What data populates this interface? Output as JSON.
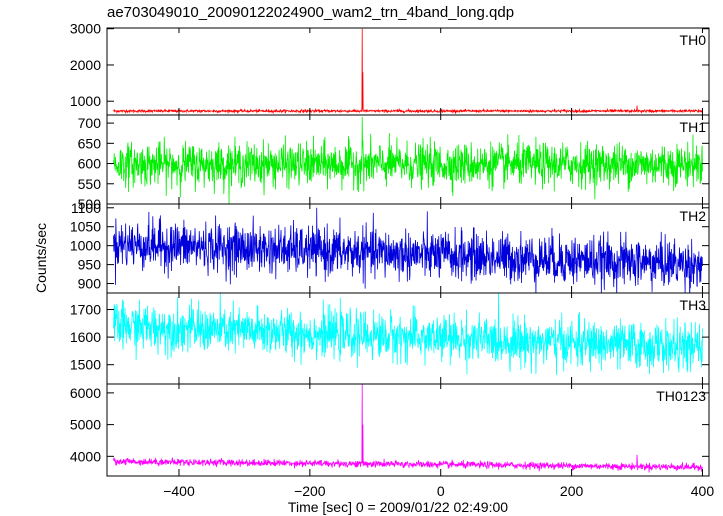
{
  "chart_data": {
    "type": "line",
    "title": "ae703049010_20090122024900_wam2_trn_4band_long.qdp",
    "xlabel": "Time [sec] 0 = 2009/01/22 02:49:00",
    "ylabel": "Counts/sec",
    "xlim": [
      -510,
      410
    ],
    "xticks": [
      -400,
      -200,
      0,
      200,
      400
    ],
    "xtick_labels": [
      "−400",
      "−200",
      "0",
      "200",
      "400"
    ],
    "panels": [
      {
        "name": "TH0",
        "color": "#ff0000",
        "ylim": [
          620,
          3020
        ],
        "yticks": [
          1000,
          2000,
          3000
        ],
        "ytick_labels": [
          "1000",
          "2000",
          "3000"
        ],
        "baseline": 730,
        "noise": 18,
        "trend": 0,
        "spikes": [
          {
            "x": -120,
            "y": 3000
          },
          {
            "x": -119,
            "y": 1800
          },
          {
            "x": 300,
            "y": 880
          }
        ]
      },
      {
        "name": "TH1",
        "color": "#00ee00",
        "ylim": [
          500,
          720
        ],
        "yticks": [
          500,
          550,
          600,
          650,
          700
        ],
        "ytick_labels": [
          "500",
          "550",
          "600",
          "650",
          "700"
        ],
        "baseline": 598,
        "noise": 26,
        "trend": 0,
        "spikes": [
          {
            "x": -120,
            "y": 715
          }
        ]
      },
      {
        "name": "TH2",
        "color": "#0000dd",
        "ylim": [
          875,
          1110
        ],
        "yticks": [
          900,
          950,
          1000,
          1050,
          1100
        ],
        "ytick_labels": [
          "900",
          "950",
          "1000",
          "1050",
          "1100"
        ],
        "baseline": 1005,
        "noise": 32,
        "trend": -55,
        "spikes": []
      },
      {
        "name": "TH3",
        "color": "#00ffff",
        "ylim": [
          1430,
          1760
        ],
        "yticks": [
          1500,
          1600,
          1700
        ],
        "ytick_labels": [
          "1500",
          "1600",
          "1700"
        ],
        "baseline": 1640,
        "noise": 42,
        "trend": -80,
        "spikes": []
      },
      {
        "name": "TH0123",
        "color": "#ff00ff",
        "ylim": [
          3380,
          6280
        ],
        "yticks": [
          4000,
          5000,
          6000
        ],
        "ytick_labels": [
          "4000",
          "5000",
          "6000"
        ],
        "baseline": 3840,
        "noise": 55,
        "trend": -180,
        "spikes": [
          {
            "x": -120,
            "y": 6280
          },
          {
            "x": -119,
            "y": 5000
          },
          {
            "x": 300,
            "y": 4050
          }
        ]
      }
    ]
  }
}
